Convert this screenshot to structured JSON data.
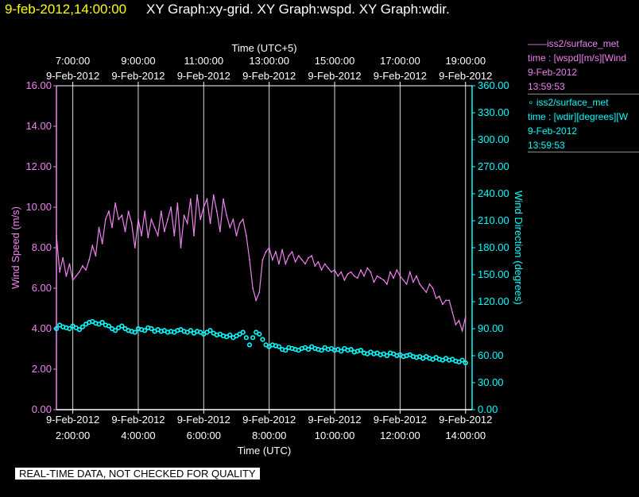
{
  "header": {
    "date_time": "9-feb-2012,14:00:00",
    "graphs": "XY Graph:xy-grid.  XY Graph:wspd.  XY Graph:wdir."
  },
  "legend": [
    {
      "marker": "——",
      "source": "iss2/surface_met",
      "field": "time : [wspd][m/s][Wind",
      "date": "9-Feb-2012",
      "time": "13:59:53"
    },
    {
      "marker": "∘",
      "source": "iss2/surface_met",
      "field": "time : [wdir][degrees][W",
      "date": "9-Feb-2012",
      "time": "13:59:53"
    }
  ],
  "badge": "REAL-TIME DATA, NOT CHECKED FOR QUALITY",
  "colors": {
    "wspd": "#ee82ee",
    "wdir": "#00ffff",
    "grid": "#ffffff",
    "background": "#000000"
  },
  "chart_data": {
    "type": "line",
    "x_bottom": {
      "label": "Time (UTC)",
      "range_hours": [
        1.5,
        14.2
      ],
      "ticks": [
        {
          "v": 2,
          "date": "9-Feb-2012",
          "time": "2:00:00"
        },
        {
          "v": 4,
          "date": "9-Feb-2012",
          "time": "4:00:00"
        },
        {
          "v": 6,
          "date": "9-Feb-2012",
          "time": "6:00:00"
        },
        {
          "v": 8,
          "date": "9-Feb-2012",
          "time": "8:00:00"
        },
        {
          "v": 10,
          "date": "9-Feb-2012",
          "time": "10:00:00"
        },
        {
          "v": 12,
          "date": "9-Feb-2012",
          "time": "12:00:00"
        },
        {
          "v": 14,
          "date": "9-Feb-2012",
          "time": "14:00:00"
        }
      ]
    },
    "x_top": {
      "label": "Time (UTC+5)",
      "ticks": [
        {
          "v": 2,
          "time": "7:00:00",
          "date": "9-Feb-2012"
        },
        {
          "v": 4,
          "time": "9:00:00",
          "date": "9-Feb-2012"
        },
        {
          "v": 6,
          "time": "11:00:00",
          "date": "9-Feb-2012"
        },
        {
          "v": 8,
          "time": "13:00:00",
          "date": "9-Feb-2012"
        },
        {
          "v": 10,
          "time": "15:00:00",
          "date": "9-Feb-2012"
        },
        {
          "v": 12,
          "time": "17:00:00",
          "date": "9-Feb-2012"
        },
        {
          "v": 14,
          "time": "19:00:00",
          "date": "9-Feb-2012"
        }
      ]
    },
    "y_left": {
      "label": "Wind Speed (m/s)",
      "range": [
        0,
        16
      ],
      "ticks": [
        "0.00",
        "2.00",
        "4.00",
        "6.00",
        "8.00",
        "10.00",
        "12.00",
        "14.00",
        "16.00"
      ]
    },
    "y_right": {
      "label": "Wind Direction (degrees)",
      "range": [
        0,
        360
      ],
      "ticks": [
        "0.00",
        "30.00",
        "60.00",
        "90.00",
        "120.00",
        "150.00",
        "180.00",
        "210.00",
        "240.00",
        "270.00",
        "300.00",
        "330.00",
        "360.00"
      ]
    },
    "grid": "vertical",
    "series": [
      {
        "name": "iss2/surface_met",
        "axis": "left",
        "style": "line",
        "color": "#ee82ee",
        "x": [
          1.5,
          1.6,
          1.7,
          1.8,
          1.9,
          2.0,
          2.1,
          2.2,
          2.3,
          2.4,
          2.5,
          2.6,
          2.7,
          2.8,
          2.9,
          3.0,
          3.1,
          3.2,
          3.3,
          3.4,
          3.5,
          3.6,
          3.7,
          3.8,
          3.9,
          4.0,
          4.1,
          4.2,
          4.3,
          4.4,
          4.5,
          4.6,
          4.7,
          4.8,
          4.9,
          5.0,
          5.1,
          5.2,
          5.3,
          5.4,
          5.5,
          5.6,
          5.7,
          5.8,
          5.9,
          6.0,
          6.1,
          6.2,
          6.3,
          6.4,
          6.5,
          6.6,
          6.7,
          6.8,
          6.9,
          7.0,
          7.1,
          7.2,
          7.3,
          7.4,
          7.5,
          7.6,
          7.7,
          7.8,
          7.9,
          8.0,
          8.1,
          8.2,
          8.3,
          8.4,
          8.5,
          8.6,
          8.7,
          8.8,
          8.9,
          9.0,
          9.1,
          9.2,
          9.3,
          9.4,
          9.5,
          9.6,
          9.7,
          9.8,
          9.9,
          10.0,
          10.1,
          10.2,
          10.3,
          10.4,
          10.5,
          10.6,
          10.7,
          10.8,
          10.9,
          11.0,
          11.1,
          11.2,
          11.3,
          11.4,
          11.5,
          11.6,
          11.7,
          11.8,
          11.9,
          12.0,
          12.1,
          12.2,
          12.3,
          12.4,
          12.5,
          12.6,
          12.7,
          12.8,
          12.9,
          13.0,
          13.1,
          13.2,
          13.3,
          13.4,
          13.5,
          13.6,
          13.7,
          13.8,
          13.9,
          14.0
        ],
        "values": [
          8.6,
          6.8,
          7.5,
          6.6,
          7.2,
          6.4,
          6.6,
          6.8,
          7.1,
          6.9,
          7.4,
          8.1,
          7.6,
          9.0,
          8.2,
          9.4,
          9.8,
          9.0,
          10.2,
          9.4,
          9.6,
          8.8,
          9.8,
          9.2,
          8.0,
          9.4,
          8.6,
          9.8,
          8.5,
          9.4,
          9.0,
          8.6,
          9.8,
          8.8,
          9.4,
          10.0,
          8.6,
          10.2,
          8.0,
          9.6,
          9.2,
          10.4,
          8.6,
          10.6,
          9.4,
          10.0,
          10.4,
          9.2,
          10.6,
          9.8,
          8.8,
          10.4,
          9.6,
          9.0,
          9.4,
          8.6,
          9.2,
          9.4,
          8.6,
          7.4,
          6.0,
          5.4,
          5.8,
          7.4,
          7.8,
          8.0,
          7.4,
          7.8,
          7.2,
          7.9,
          7.2,
          7.6,
          7.8,
          7.3,
          7.6,
          7.4,
          7.2,
          7.5,
          7.6,
          7.1,
          7.3,
          6.9,
          7.2,
          7.0,
          6.8,
          6.9,
          6.6,
          6.8,
          6.4,
          6.7,
          6.8,
          6.6,
          6.5,
          6.9,
          6.6,
          7.0,
          6.8,
          6.3,
          6.6,
          6.5,
          6.4,
          6.2,
          6.8,
          6.5,
          6.9,
          6.6,
          6.4,
          6.2,
          6.8,
          6.3,
          6.6,
          6.2,
          6.0,
          5.8,
          6.2,
          6.0,
          5.5,
          5.6,
          5.2,
          5.4,
          5.4,
          4.8,
          4.2,
          4.4,
          3.9,
          4.6
        ]
      },
      {
        "name": "iss2/surface_met",
        "axis": "right",
        "style": "markers",
        "color": "#00ffff",
        "x": [
          1.5,
          1.6,
          1.7,
          1.8,
          1.9,
          2.0,
          2.1,
          2.2,
          2.3,
          2.4,
          2.5,
          2.6,
          2.7,
          2.8,
          2.9,
          3.0,
          3.1,
          3.2,
          3.3,
          3.4,
          3.5,
          3.6,
          3.7,
          3.8,
          3.9,
          4.0,
          4.1,
          4.2,
          4.3,
          4.4,
          4.5,
          4.6,
          4.7,
          4.8,
          4.9,
          5.0,
          5.1,
          5.2,
          5.3,
          5.4,
          5.5,
          5.6,
          5.7,
          5.8,
          5.9,
          6.0,
          6.1,
          6.2,
          6.3,
          6.4,
          6.5,
          6.6,
          6.7,
          6.8,
          6.9,
          7.0,
          7.1,
          7.2,
          7.3,
          7.4,
          7.5,
          7.6,
          7.7,
          7.8,
          7.9,
          8.0,
          8.1,
          8.2,
          8.3,
          8.4,
          8.5,
          8.6,
          8.7,
          8.8,
          8.9,
          9.0,
          9.1,
          9.2,
          9.3,
          9.4,
          9.5,
          9.6,
          9.7,
          9.8,
          9.9,
          10.0,
          10.1,
          10.2,
          10.3,
          10.4,
          10.5,
          10.6,
          10.7,
          10.8,
          10.9,
          11.0,
          11.1,
          11.2,
          11.3,
          11.4,
          11.5,
          11.6,
          11.7,
          11.8,
          11.9,
          12.0,
          12.1,
          12.2,
          12.3,
          12.4,
          12.5,
          12.6,
          12.7,
          12.8,
          12.9,
          13.0,
          13.1,
          13.2,
          13.3,
          13.4,
          13.5,
          13.6,
          13.7,
          13.8,
          13.9,
          14.0
        ],
        "values": [
          90,
          94,
          92,
          91,
          90,
          93,
          91,
          89,
          92,
          95,
          97,
          98,
          96,
          95,
          97,
          94,
          93,
          90,
          88,
          91,
          93,
          90,
          88,
          87,
          86,
          90,
          89,
          88,
          91,
          90,
          87,
          89,
          87,
          88,
          86,
          87,
          86,
          88,
          89,
          87,
          86,
          88,
          85,
          87,
          86,
          84,
          86,
          88,
          85,
          83,
          84,
          82,
          81,
          83,
          80,
          82,
          84,
          86,
          80,
          72,
          80,
          86,
          84,
          78,
          72,
          70,
          72,
          71,
          70,
          67,
          66,
          69,
          68,
          67,
          66,
          68,
          69,
          67,
          70,
          68,
          67,
          66,
          69,
          67,
          68,
          66,
          67,
          65,
          68,
          66,
          67,
          64,
          65,
          66,
          63,
          62,
          64,
          62,
          63,
          61,
          62,
          60,
          63,
          62,
          60,
          61,
          59,
          60,
          61,
          59,
          58,
          59,
          57,
          59,
          57,
          56,
          58,
          56,
          55,
          57,
          55,
          56,
          54,
          53,
          55,
          52
        ]
      }
    ]
  }
}
